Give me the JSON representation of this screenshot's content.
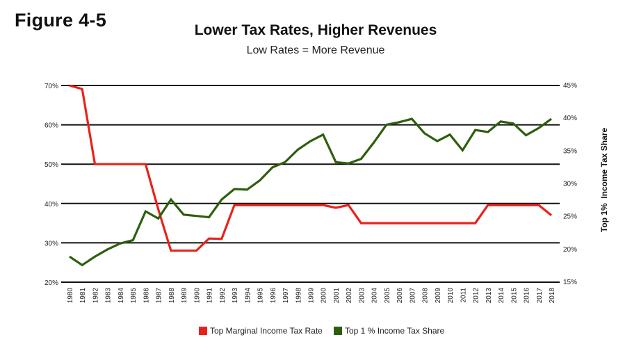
{
  "figure_label": "Figure 4-5",
  "chart_data": {
    "type": "line",
    "title": "Lower Tax Rates, Higher Revenues",
    "subtitle": "Low Rates = More Revenue",
    "xlabel": "",
    "ylabel_left": "",
    "ylabel_right": "Top 1%  Income Tax Share",
    "x": [
      "1980",
      "1981",
      "1982",
      "1983",
      "1984",
      "1985",
      "1986",
      "1987",
      "1988",
      "1989",
      "1990",
      "1991",
      "1992",
      "1993",
      "1994",
      "1995",
      "1996",
      "1997",
      "1998",
      "1999",
      "2000",
      "2001",
      "2002",
      "2003",
      "2004",
      "2005",
      "2006",
      "2007",
      "2008",
      "2009",
      "2010",
      "2011",
      "2012",
      "2013",
      "2014",
      "2015",
      "2016",
      "2017",
      "2018"
    ],
    "ylim_left": [
      20,
      70
    ],
    "yticks_left": [
      "20%",
      "30%",
      "40%",
      "50%",
      "60%",
      "70%"
    ],
    "yticks_left_values": [
      20,
      30,
      40,
      50,
      60,
      70
    ],
    "ylim_right": [
      15,
      45
    ],
    "yticks_right": [
      "15%",
      "20%",
      "25%",
      "30%",
      "35%",
      "40%",
      "45%"
    ],
    "yticks_right_values": [
      15,
      20,
      25,
      30,
      35,
      40,
      45
    ],
    "grid": true,
    "legend_position": "bottom-center",
    "series": [
      {
        "name": "Top Marginal Income Tax Rate",
        "axis": "left",
        "color": "#e8221b",
        "values": [
          70,
          69.1,
          50,
          50,
          50,
          50,
          50,
          38.5,
          28,
          28,
          28,
          31.1,
          31,
          39.6,
          39.6,
          39.6,
          39.6,
          39.6,
          39.6,
          39.6,
          39.6,
          38.9,
          39.6,
          35,
          35,
          35,
          35,
          35,
          35,
          35,
          35,
          35,
          35,
          39.6,
          39.6,
          39.6,
          39.6,
          39.6,
          37
        ]
      },
      {
        "name": "Top 1 % Income Tax Share",
        "axis": "right",
        "color": "#2d5e0d",
        "values": [
          18.8,
          17.5,
          18.8,
          19.9,
          20.8,
          21.3,
          25.7,
          24.6,
          27.5,
          25.2,
          25.0,
          24.8,
          27.5,
          29.1,
          29.0,
          30.4,
          32.4,
          33.2,
          35.1,
          36.4,
          37.4,
          33.2,
          33.0,
          33.7,
          36.2,
          38.9,
          39.3,
          39.8,
          37.6,
          36.4,
          37.4,
          35.0,
          38.1,
          37.8,
          39.4,
          39.1,
          37.3,
          38.4,
          39.8
        ]
      }
    ]
  }
}
